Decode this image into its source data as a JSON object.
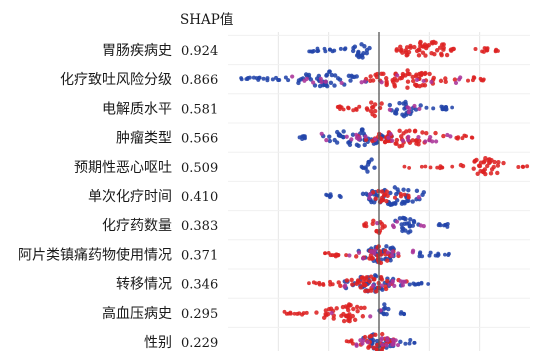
{
  "chart_data": {
    "type": "scatter",
    "title": "SHAP值",
    "xlabel": "",
    "ylabel": "",
    "xlim": [
      -0.6,
      0.6
    ],
    "grid": true,
    "zero_line": 0,
    "colors": {
      "low": "#2244aa",
      "high": "#dd2222",
      "mid": "#aa3399",
      "zero_line": "#555555",
      "grid": "#e6e6e6"
    },
    "features": [
      {
        "name": "胃肠疾病史",
        "value": "0.924",
        "shap_value": 0.924,
        "low": {
          "core": [
            -0.13,
            0.0
          ],
          "tail": [
            -0.27,
            -0.13
          ],
          "sparse": [
            -0.28,
            -0.2
          ]
        },
        "high": {
          "core": [
            0.0,
            0.38
          ],
          "tail": [
            0.38,
            0.47
          ],
          "sparse": [
            0.4,
            0.48
          ]
        },
        "mid_frac": 0.0
      },
      {
        "name": "化疗致吐风险分级",
        "value": "0.866",
        "shap_value": 0.866,
        "low": {
          "core": [
            -0.36,
            -0.04
          ],
          "tail": [
            -0.53,
            -0.36
          ],
          "sparse": [
            -0.55,
            -0.45
          ]
        },
        "high": {
          "core": [
            -0.12,
            0.35
          ],
          "tail": [
            0.35,
            0.42
          ],
          "sparse": [
            0.4,
            0.42
          ]
        },
        "mid_frac": 0.3
      },
      {
        "name": "电解质水平",
        "value": "0.581",
        "shap_value": 0.581,
        "low": {
          "core": [
            0.0,
            0.18
          ],
          "tail": [
            0.18,
            0.28
          ],
          "sparse": [
            0.24,
            0.3
          ]
        },
        "high": {
          "core": [
            -0.06,
            0.03
          ],
          "tail": [
            -0.17,
            -0.06
          ],
          "sparse": [
            -0.18,
            -0.12
          ]
        },
        "mid_frac": 0.1
      },
      {
        "name": "肿瘤类型",
        "value": "0.566",
        "shap_value": 0.566,
        "low": {
          "core": [
            -0.25,
            0.08
          ],
          "tail": [
            -0.32,
            -0.25
          ],
          "sparse": [
            -0.32,
            -0.28
          ]
        },
        "high": {
          "core": [
            -0.12,
            0.3
          ],
          "tail": [
            0.3,
            0.37
          ],
          "sparse": [
            0.34,
            0.38
          ]
        },
        "mid_frac": 0.4
      },
      {
        "name": "预期性恶心呕吐",
        "value": "0.509",
        "shap_value": 0.509,
        "low": {
          "core": [
            -0.06,
            -0.01
          ],
          "tail": [
            -0.07,
            -0.05
          ],
          "sparse": [
            -0.07,
            -0.06
          ]
        },
        "high": {
          "core": [
            0.3,
            0.55
          ],
          "tail": [
            0.55,
            0.6
          ],
          "sparse": [
            0.1,
            0.3
          ]
        },
        "mid_frac": 0.0
      },
      {
        "name": "单次化疗时间",
        "value": "0.410",
        "shap_value": 0.41,
        "low": {
          "core": [
            -0.15,
            0.26
          ],
          "tail": [
            -0.2,
            -0.15
          ],
          "sparse": [
            -0.24,
            -0.18
          ]
        },
        "high": {
          "core": [
            -0.04,
            0.06
          ],
          "tail": [
            0.06,
            0.12
          ],
          "sparse": [
            0.1,
            0.14
          ]
        },
        "mid_frac": 0.05
      },
      {
        "name": "化疗药数量",
        "value": "0.383",
        "shap_value": 0.383,
        "low": {
          "core": [
            0.02,
            0.2
          ],
          "tail": [
            0.2,
            0.28
          ],
          "sparse": [
            0.24,
            0.28
          ]
        },
        "high": {
          "core": [
            -0.04,
            0.04
          ],
          "tail": [
            -0.06,
            -0.04
          ],
          "sparse": [
            -0.06,
            -0.05
          ]
        },
        "mid_frac": 0.1
      },
      {
        "name": "阿片类镇痛药物使用情况",
        "value": "0.371",
        "shap_value": 0.371,
        "low": {
          "core": [
            -0.14,
            0.16
          ],
          "tail": [
            0.16,
            0.26
          ],
          "sparse": [
            0.2,
            0.28
          ]
        },
        "high": {
          "core": [
            -0.1,
            0.1
          ],
          "tail": [
            -0.2,
            -0.1
          ],
          "sparse": [
            -0.22,
            -0.16
          ]
        },
        "mid_frac": 0.2
      },
      {
        "name": "转移情况",
        "value": "0.346",
        "shap_value": 0.346,
        "low": {
          "core": [
            -0.18,
            0.12
          ],
          "tail": [
            0.12,
            0.18
          ],
          "sparse": [
            0.14,
            0.2
          ]
        },
        "high": {
          "core": [
            -0.18,
            0.12
          ],
          "tail": [
            -0.26,
            -0.18
          ],
          "sparse": [
            -0.28,
            -0.22
          ]
        },
        "mid_frac": 0.2
      },
      {
        "name": "高血压病史",
        "value": "0.295",
        "shap_value": 0.295,
        "low": {
          "core": [
            -0.02,
            0.06
          ],
          "tail": [
            0.06,
            0.1
          ],
          "sparse": [
            0.08,
            0.1
          ]
        },
        "high": {
          "core": [
            -0.28,
            0.02
          ],
          "tail": [
            -0.37,
            -0.28
          ],
          "sparse": [
            -0.38,
            -0.32
          ]
        },
        "mid_frac": 0.05
      },
      {
        "name": "性别",
        "value": "0.229",
        "shap_value": 0.229,
        "low": {
          "core": [
            -0.1,
            0.1
          ],
          "tail": [
            0.1,
            0.14
          ],
          "sparse": [
            0.12,
            0.16
          ]
        },
        "high": {
          "core": [
            -0.1,
            0.1
          ],
          "tail": [
            -0.13,
            -0.1
          ],
          "sparse": [
            -0.13,
            -0.12
          ]
        },
        "mid_frac": 0.3
      }
    ]
  }
}
